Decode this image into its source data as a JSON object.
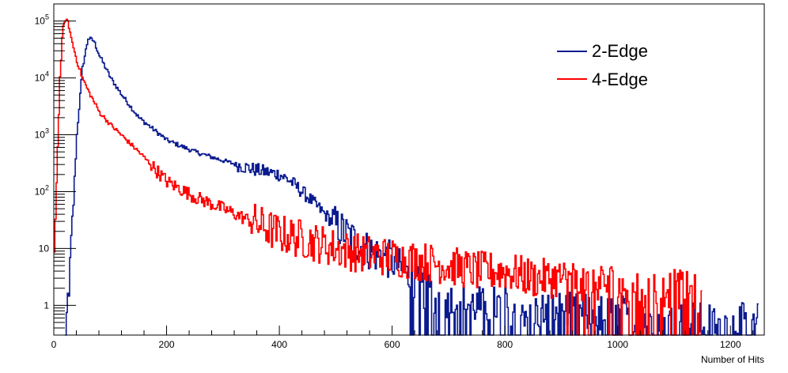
{
  "chart_data": {
    "type": "line",
    "title": "",
    "xlabel": "Number of Hits",
    "ylabel": "",
    "xlim": [
      0,
      1260
    ],
    "ylim": [
      0.3,
      200000
    ],
    "yscale": "log",
    "grid": false,
    "legend_position": "top-right",
    "x_ticks": [
      0,
      200,
      400,
      600,
      800,
      1000,
      1200
    ],
    "x_tick_labels": [
      "0",
      "200",
      "400",
      "600",
      "800",
      "1000",
      "1200"
    ],
    "y_ticks": [
      {
        "value": 1,
        "base": "1",
        "exp": ""
      },
      {
        "value": 10,
        "base": "10",
        "exp": ""
      },
      {
        "value": 100,
        "base": "10",
        "exp": "2"
      },
      {
        "value": 1000,
        "base": "10",
        "exp": "3"
      },
      {
        "value": 10000,
        "base": "10",
        "exp": "4"
      },
      {
        "value": 100000,
        "base": "10",
        "exp": "5"
      }
    ],
    "series": [
      {
        "name": "2-Edge",
        "color": "#0a1a8f",
        "x": [
          20,
          30,
          40,
          50,
          60,
          70,
          80,
          100,
          120,
          150,
          200,
          250,
          300,
          350,
          400,
          420,
          450,
          480,
          500,
          550,
          600,
          650,
          700,
          750,
          800,
          850,
          900,
          950,
          1000,
          1050,
          1100,
          1150,
          1200,
          1250
        ],
        "y": [
          0.3,
          10,
          1000,
          15000,
          50000,
          45000,
          25000,
          10000,
          5000,
          2000,
          800,
          500,
          350,
          250,
          200,
          150,
          80,
          40,
          25,
          10,
          6,
          2,
          1.2,
          1,
          1,
          0.8,
          0.8,
          0.7,
          0.7,
          0.6,
          0.6,
          0.5,
          0.5,
          0.5
        ],
        "noise": 0.35
      },
      {
        "name": "4-Edge",
        "color": "#ff0000",
        "x": [
          0,
          5,
          10,
          15,
          20,
          25,
          30,
          40,
          50,
          60,
          80,
          100,
          150,
          200,
          250,
          300,
          350,
          400,
          450,
          500,
          550,
          600,
          650,
          700,
          750,
          800,
          850,
          900,
          950,
          1000,
          1050,
          1100,
          1150
        ],
        "y": [
          10,
          300,
          10000,
          70000,
          110000,
          90000,
          50000,
          20000,
          10000,
          6000,
          2500,
          1500,
          500,
          150,
          80,
          50,
          30,
          18,
          14,
          10,
          8,
          7,
          6,
          5,
          4,
          4,
          3,
          3,
          2.5,
          2.5,
          2,
          2,
          1.5
        ],
        "noise": 0.35
      }
    ]
  }
}
